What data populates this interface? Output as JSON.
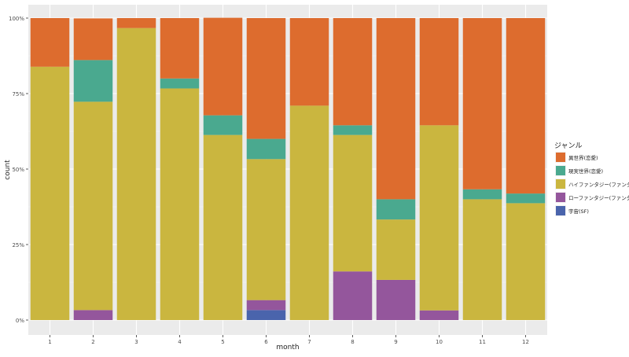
{
  "chart_data": {
    "type": "bar",
    "stacked": true,
    "position": "fill",
    "xlabel": "month",
    "ylabel": "count",
    "categories": [
      "1",
      "2",
      "3",
      "4",
      "5",
      "6",
      "7",
      "8",
      "9",
      "10",
      "11",
      "12"
    ],
    "y_ticks": [
      "0%",
      "25%",
      "50%",
      "75%",
      "100%"
    ],
    "ylim": [
      0,
      1
    ],
    "grid": true,
    "legend": {
      "title": "ジャンル",
      "placement": "right"
    },
    "series": [
      {
        "name": "宇宙(SF)",
        "color": "#4a64ac",
        "values": [
          0,
          0,
          0,
          0,
          0,
          0.033,
          0,
          0,
          0,
          0,
          0,
          0
        ]
      },
      {
        "name": "ローファンタジー(ファンタジー)",
        "color": "#94569c",
        "values": [
          0,
          0.033,
          0,
          0,
          0,
          0.033,
          0,
          0.161,
          0.133,
          0.032,
          0,
          0
        ]
      },
      {
        "name": "ハイファンタジー(ファンタジー)",
        "color": "#cab63f",
        "values": [
          0.839,
          0.69,
          0.967,
          0.767,
          0.613,
          0.467,
          0.71,
          0.452,
          0.2,
          0.613,
          0.4,
          0.387
        ]
      },
      {
        "name": "現実世界(恋愛)",
        "color": "#4aa98f",
        "values": [
          0,
          0.138,
          0,
          0.033,
          0.065,
          0.067,
          0,
          0.032,
          0.067,
          0,
          0.033,
          0.032
        ]
      },
      {
        "name": "異世界(恋愛)",
        "color": "#dd6c2e",
        "values": [
          0.161,
          0.138,
          0.033,
          0.2,
          0.323,
          0.4,
          0.29,
          0.355,
          0.6,
          0.355,
          0.567,
          0.581
        ]
      }
    ],
    "legend_order": [
      "異世界(恋愛)",
      "現実世界(恋愛)",
      "ハイファンタジー(ファンタジー)",
      "ローファンタジー(ファンタジー)",
      "宇宙(SF)"
    ]
  }
}
